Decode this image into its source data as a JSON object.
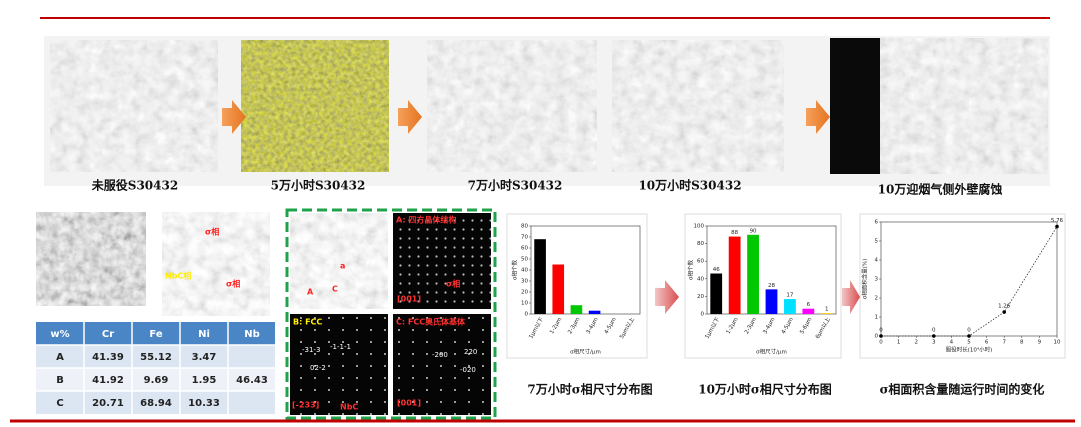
{
  "slide": {
    "images": [
      {
        "caption": "未服役S30432"
      },
      {
        "caption": "5万小时S30432"
      },
      {
        "caption": "7万小时S30432"
      },
      {
        "caption": "10万小时S30432"
      },
      {
        "caption": "10万迎烟气侧外壁腐蚀"
      }
    ],
    "sem_labels": {
      "sigma_top": "σ相",
      "nbc": "NbC相",
      "sigma_right": "σ相"
    },
    "tem_labels": {
      "a": "a",
      "c": "C",
      "big_a": "A"
    },
    "diffraction": {
      "a": {
        "title": "A: 四方晶体结构",
        "zone": "[001]",
        "phase": "σ相"
      },
      "b": {
        "title": "B: FCC",
        "zone": "[-233]",
        "phase": "NbC",
        "spots": [
          "-31-3",
          "-1-1-1",
          "02-2"
        ]
      },
      "c": {
        "title": "C: FCC奥氏体基体",
        "zone": "[001]",
        "spots": [
          "-200",
          "220",
          "-020"
        ]
      }
    },
    "table": {
      "header": [
        "w%",
        "Cr",
        "Fe",
        "Ni",
        "Nb"
      ],
      "rows": [
        [
          "A",
          41.39,
          55.12,
          3.47,
          null
        ],
        [
          "B",
          41.92,
          9.69,
          1.95,
          46.43
        ],
        [
          "C",
          20.71,
          68.94,
          10.33,
          null
        ]
      ]
    }
  },
  "chart_data": [
    {
      "type": "bar",
      "title": "7万小时σ相尺寸分布图",
      "categories": [
        "1μm以下",
        "1-2μm",
        "2-3μm",
        "3-4μm",
        "4-5μm",
        "5μm以上"
      ],
      "values": [
        68,
        45,
        8,
        3,
        0,
        0
      ],
      "colors": [
        "#000000",
        "#ff0000",
        "#00c800",
        "#0000ff",
        "#00e0ff",
        "#ff00ff"
      ],
      "ylim": [
        0,
        80
      ],
      "yticks": [
        0,
        10,
        20,
        30,
        40,
        50,
        60,
        70,
        80
      ],
      "ylabel": "σ相个数",
      "xlabel": "σ相尺寸/μm",
      "data_labels": false
    },
    {
      "type": "bar",
      "title": "10万小时σ相尺寸分布图",
      "categories": [
        "1μm以下",
        "1-2μm",
        "2-3μm",
        "3-4μm",
        "4-5μm",
        "5-6μm",
        "6μm以上"
      ],
      "values": [
        46,
        88,
        90,
        28,
        17,
        6,
        1
      ],
      "colors": [
        "#000000",
        "#ff0000",
        "#00c800",
        "#0000ff",
        "#00e0ff",
        "#ff00ff",
        "#ffcc00"
      ],
      "ylim": [
        0,
        100
      ],
      "yticks": [
        0,
        20,
        40,
        60,
        80,
        100
      ],
      "ylabel": "σ相个数",
      "xlabel": "σ相尺寸/μm",
      "data_labels": true
    },
    {
      "type": "line",
      "title": "σ相面积含量随运行时间的变化",
      "x": [
        0,
        3,
        5,
        7,
        10
      ],
      "values": [
        0,
        0,
        0,
        1.26,
        5.76
      ],
      "color": "#333333",
      "xlim": [
        0,
        10
      ],
      "xticks": [
        0,
        1,
        2,
        3,
        4,
        5,
        6,
        7,
        8,
        9,
        10
      ],
      "ylim": [
        0,
        6
      ],
      "yticks": [
        0,
        1,
        2,
        3,
        4,
        5,
        6
      ],
      "xlabel": "服役时长(10⁴小时)",
      "ylabel": "σ相面积含量(%)",
      "data_labels": true
    }
  ]
}
